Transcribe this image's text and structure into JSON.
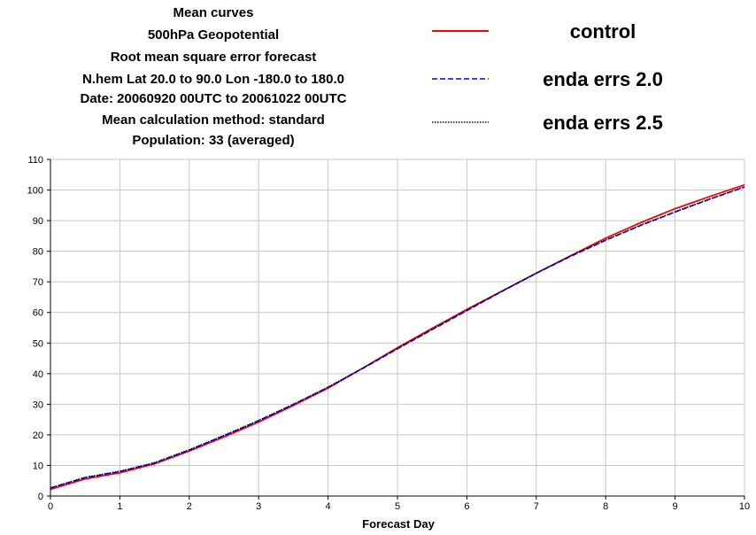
{
  "title_lines": [
    "Mean curves",
    "500hPa Geopotential",
    "Root mean square error forecast",
    "N.hem  Lat  20.0 to 90.0 Lon  -180.0 to  180.0",
    "Date: 20060920 00UTC to 20061022 00UTC",
    "Mean calculation method: standard",
    "Population: 33 (averaged)"
  ],
  "chart_data": {
    "type": "line",
    "xlabel": "Forecast Day",
    "ylabel": "",
    "xlim": [
      0,
      10
    ],
    "ylim": [
      0,
      110
    ],
    "xticks": [
      0,
      1,
      2,
      3,
      4,
      5,
      6,
      7,
      8,
      9,
      10
    ],
    "yticks": [
      0,
      10,
      20,
      30,
      40,
      50,
      60,
      70,
      80,
      90,
      100,
      110
    ],
    "grid": true,
    "legend_position": "top-right",
    "series": [
      {
        "name": "control",
        "color": "#ff0000",
        "dash": "solid",
        "x": [
          0,
          0.5,
          1,
          1.5,
          2,
          2.5,
          3,
          3.5,
          4,
          4.5,
          5,
          5.5,
          6,
          6.5,
          7,
          7.5,
          8,
          8.5,
          9,
          9.5,
          10
        ],
        "y": [
          2.2,
          5.6,
          7.6,
          10.5,
          14.7,
          19.3,
          24.2,
          29.6,
          35.3,
          41.8,
          48.5,
          54.8,
          61.0,
          66.9,
          72.8,
          78.6,
          84.3,
          89.3,
          93.9,
          97.9,
          101.7
        ]
      },
      {
        "name": "enda errs 2.0",
        "color": "#0000ff",
        "dash": "dashed",
        "x": [
          0,
          0.5,
          1,
          1.5,
          2,
          2.5,
          3,
          3.5,
          4,
          4.5,
          5,
          5.5,
          6,
          6.5,
          7,
          7.5,
          8,
          8.5,
          9,
          9.5,
          10
        ],
        "y": [
          2.6,
          6.0,
          8.0,
          10.8,
          15.0,
          19.7,
          24.6,
          29.9,
          35.5,
          41.7,
          48.1,
          54.4,
          60.6,
          66.8,
          72.8,
          78.4,
          83.6,
          88.4,
          92.8,
          97.0,
          101.0
        ]
      },
      {
        "name": "enda errs 2.5",
        "color": "#000033",
        "dash": "dotted",
        "x": [
          0,
          0.5,
          1,
          1.5,
          2,
          2.5,
          3,
          3.5,
          4,
          4.5,
          5,
          5.5,
          6,
          6.5,
          7,
          7.5,
          8,
          8.5,
          9,
          9.5,
          10
        ],
        "y": [
          2.7,
          6.1,
          8.1,
          10.9,
          15.1,
          19.8,
          24.7,
          30.0,
          35.6,
          41.8,
          48.2,
          54.5,
          60.7,
          66.9,
          72.9,
          78.5,
          83.7,
          88.5,
          92.9,
          97.1,
          101.1
        ]
      }
    ]
  }
}
